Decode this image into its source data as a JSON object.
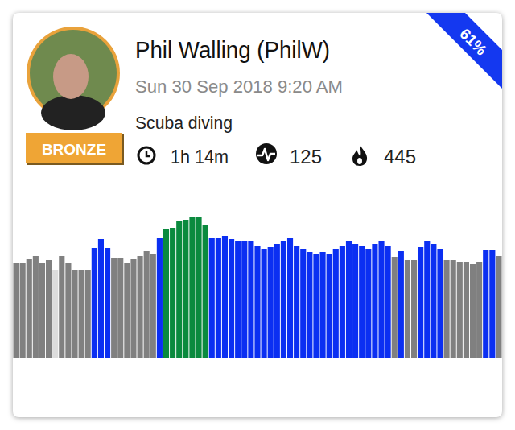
{
  "header": {
    "name": "Phil Walling (PhilW)",
    "date": "Sun 30 Sep 2018 9:20 AM",
    "activity": "Scuba diving",
    "badge": "BRONZE",
    "ribbon": "61%",
    "duration": "1h 14m",
    "effort": 125,
    "calories": 445
  },
  "chart_data": {
    "type": "bar",
    "values": [
      118,
      118,
      123,
      127,
      118,
      122,
      110,
      127,
      118,
      110,
      110,
      110,
      137,
      148,
      137,
      125,
      125,
      118,
      123,
      127,
      133,
      130,
      150,
      160,
      162,
      170,
      172,
      175,
      175,
      165,
      150,
      150,
      152,
      148,
      146,
      146,
      146,
      140,
      136,
      138,
      142,
      146,
      150,
      140,
      136,
      132,
      130,
      132,
      130,
      136,
      140,
      146,
      142,
      140,
      136,
      142,
      146,
      140,
      126,
      133,
      122,
      122,
      138,
      146,
      142,
      136,
      122,
      122,
      120,
      120,
      117,
      120,
      135,
      135,
      127
    ],
    "colors": [
      "#808080",
      "#808080",
      "#808080",
      "#808080",
      "#808080",
      "#808080",
      "#dcdcdc",
      "#808080",
      "#808080",
      "#808080",
      "#808080",
      "#808080",
      "#0b2ff2",
      "#0b2ff2",
      "#0b2ff2",
      "#808080",
      "#808080",
      "#808080",
      "#808080",
      "#808080",
      "#808080",
      "#808080",
      "#0b2ff2",
      "#0a8a3e",
      "#0a8a3e",
      "#0a8a3e",
      "#0a8a3e",
      "#0a8a3e",
      "#0a8a3e",
      "#0a8a3e",
      "#0b2ff2",
      "#0b2ff2",
      "#0b2ff2",
      "#0b2ff2",
      "#0b2ff2",
      "#0b2ff2",
      "#0b2ff2",
      "#0b2ff2",
      "#0b2ff2",
      "#0b2ff2",
      "#0b2ff2",
      "#0b2ff2",
      "#0b2ff2",
      "#0b2ff2",
      "#0b2ff2",
      "#0b2ff2",
      "#0b2ff2",
      "#0b2ff2",
      "#0b2ff2",
      "#0b2ff2",
      "#0b2ff2",
      "#0b2ff2",
      "#0b2ff2",
      "#0b2ff2",
      "#0b2ff2",
      "#0b2ff2",
      "#0b2ff2",
      "#0b2ff2",
      "#808080",
      "#0b2ff2",
      "#808080",
      "#808080",
      "#0b2ff2",
      "#0b2ff2",
      "#0b2ff2",
      "#0b2ff2",
      "#808080",
      "#808080",
      "#808080",
      "#808080",
      "#808080",
      "#808080",
      "#0b2ff2",
      "#0b2ff2",
      "#808080"
    ],
    "ylim": [
      0,
      200
    ],
    "grid": false,
    "tick_labels": false
  }
}
